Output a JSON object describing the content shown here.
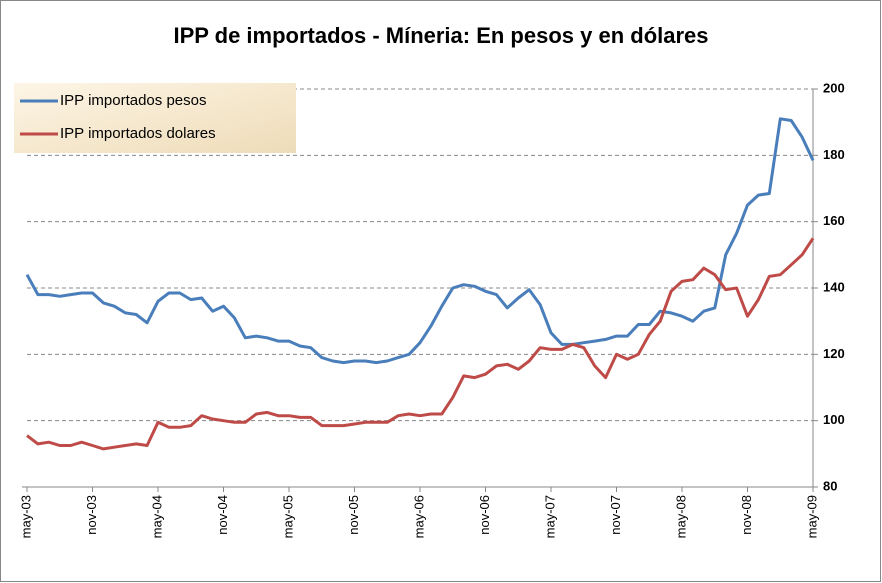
{
  "chart_data": {
    "type": "line",
    "title": "IPP de importados  - Míneria: En pesos y en dólares",
    "categories": [
      "may-03",
      null,
      null,
      null,
      null,
      null,
      "nov-03",
      null,
      null,
      null,
      null,
      null,
      "may-04",
      null,
      null,
      null,
      null,
      null,
      "nov-04",
      null,
      null,
      null,
      null,
      null,
      "may-05",
      null,
      null,
      null,
      null,
      null,
      "nov-05",
      null,
      null,
      null,
      null,
      null,
      "may-06",
      null,
      null,
      null,
      null,
      null,
      "nov-06",
      null,
      null,
      null,
      null,
      null,
      "may-07",
      null,
      null,
      null,
      null,
      null,
      "nov-07",
      null,
      null,
      null,
      null,
      null,
      "may-08",
      null,
      null,
      null,
      null,
      null,
      "nov-08",
      null,
      null,
      null,
      null,
      null,
      "may-09"
    ],
    "series": [
      {
        "name": "IPP importados pesos",
        "color": "#4a7ebb",
        "values": [
          144,
          138,
          138,
          137.5,
          138,
          138.5,
          138.5,
          135.5,
          134.5,
          132.5,
          132,
          129.5,
          136,
          138.5,
          138.5,
          136.5,
          137,
          133,
          134.5,
          131,
          125,
          125.5,
          125,
          124,
          124,
          122.5,
          122,
          119,
          118,
          117.5,
          118,
          118,
          117.5,
          118,
          119,
          120,
          123.5,
          128.5,
          134.5,
          140,
          141,
          140.5,
          139,
          138,
          134,
          137,
          139.5,
          135,
          126.5,
          123,
          123,
          123.5,
          124,
          124.5,
          125.5,
          125.5,
          129,
          129,
          133,
          132.5,
          131.5,
          130,
          133,
          134,
          150,
          156.5,
          165,
          168,
          168.5,
          191,
          190.5,
          185.5,
          178.5
        ]
      },
      {
        "name": "IPP importados dolares",
        "color": "#be4b48",
        "values": [
          95.5,
          93,
          93.5,
          92.5,
          92.5,
          93.5,
          92.5,
          91.5,
          92,
          92.5,
          93,
          92.5,
          99.5,
          98,
          98,
          98.5,
          101.5,
          100.5,
          100,
          99.5,
          99.5,
          102,
          102.5,
          101.5,
          101.5,
          101,
          101,
          98.5,
          98.5,
          98.5,
          99,
          99.5,
          99.5,
          99.5,
          101.5,
          102,
          101.5,
          102,
          102,
          107,
          113.5,
          113,
          114,
          116.5,
          117,
          115.5,
          118,
          122,
          121.5,
          121.5,
          123,
          122,
          116.5,
          113,
          120,
          118.5,
          120,
          126,
          130,
          139,
          142,
          142.5,
          146,
          144,
          139.5,
          140,
          131.5,
          136.5,
          143.5,
          144,
          147,
          150,
          155
        ]
      }
    ],
    "ylim": [
      80,
      200
    ],
    "yticks": [
      80,
      100,
      120,
      140,
      160,
      180,
      200
    ],
    "grid": true,
    "legend": "top-left"
  }
}
